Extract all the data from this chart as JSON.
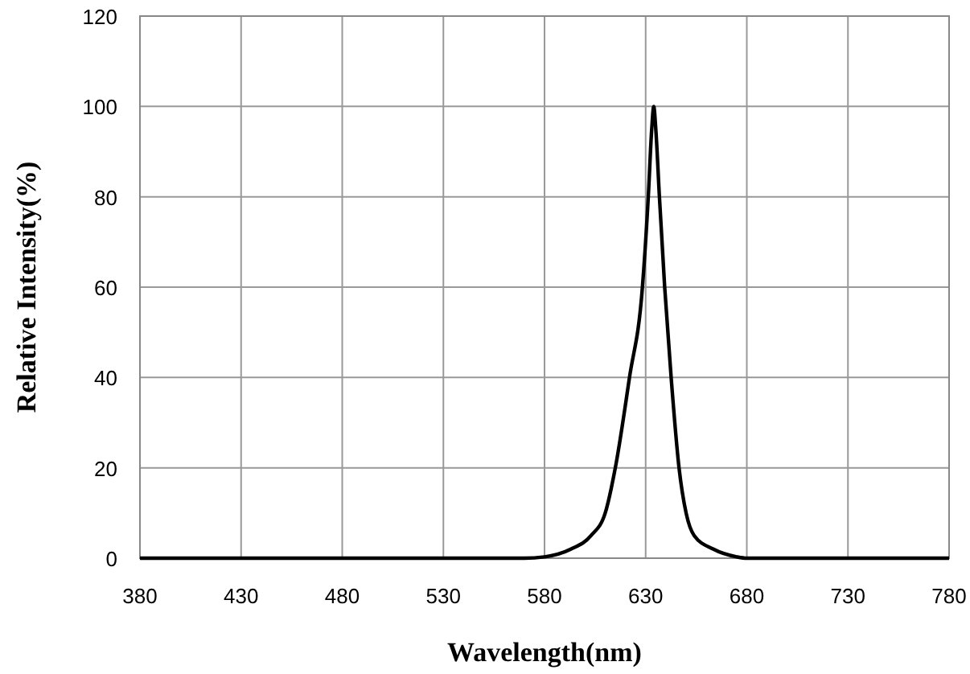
{
  "chart_data": {
    "type": "line",
    "xlabel": "Wavelength(nm)",
    "ylabel": "Relative Intensity(%)",
    "x": [
      380,
      570,
      580,
      593,
      603,
      610,
      615,
      622,
      628.4,
      631.3,
      633,
      634,
      635,
      636.8,
      639.4,
      642.6,
      646.5,
      650,
      654,
      663.5,
      675,
      680,
      780
    ],
    "series": [
      {
        "color": "#000000",
        "values": [
          0,
          0,
          0.3,
          2,
          5,
          10,
          20,
          40,
          60,
          80,
          95,
          100,
          95,
          80,
          60,
          40,
          20,
          10,
          5,
          2,
          0.3,
          0,
          0
        ]
      }
    ],
    "xlim": [
      380,
      780
    ],
    "xticks": [
      380,
      430,
      480,
      530,
      580,
      630,
      680,
      730,
      780
    ],
    "ylim": [
      0,
      120
    ],
    "yticks": [
      0,
      20,
      40,
      60,
      80,
      100,
      120
    ],
    "grid": true,
    "line_style": "solid"
  }
}
